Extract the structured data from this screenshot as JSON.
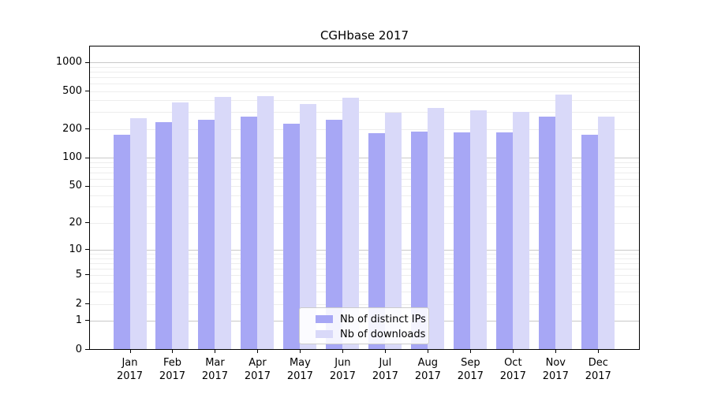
{
  "chart_data": {
    "type": "bar",
    "title": "CGHbase 2017",
    "year": "2017",
    "categories": [
      "Jan",
      "Feb",
      "Mar",
      "Apr",
      "May",
      "Jun",
      "Jul",
      "Aug",
      "Sep",
      "Oct",
      "Nov",
      "Dec"
    ],
    "series": [
      {
        "name": "Nb of distinct IPs",
        "color": "#a7a7f5",
        "values": [
          174,
          237,
          248,
          270,
          228,
          251,
          180,
          187,
          185,
          183,
          268,
          174
        ]
      },
      {
        "name": "Nb of downloads",
        "color": "#d9d9f9",
        "values": [
          259,
          377,
          433,
          442,
          366,
          425,
          297,
          333,
          314,
          301,
          459,
          268
        ]
      }
    ],
    "xlabel": "",
    "ylabel": "",
    "yscale": "log1p",
    "yticks": [
      0,
      1,
      2,
      5,
      10,
      20,
      50,
      100,
      200,
      500,
      1000
    ],
    "ylim": [
      0,
      1490
    ],
    "grid": {
      "major_ticks": [
        1,
        10,
        100,
        1000
      ],
      "major_color": "#c9c9c9",
      "minor_color": "#ededed",
      "enabled": true
    },
    "legend": {
      "position": "lower center",
      "frame": true
    },
    "colors": {
      "axis": "#000000",
      "background": "#ffffff",
      "bar_distinct_ips": "#a7a7f5",
      "bar_downloads": "#d9d9f9"
    }
  }
}
